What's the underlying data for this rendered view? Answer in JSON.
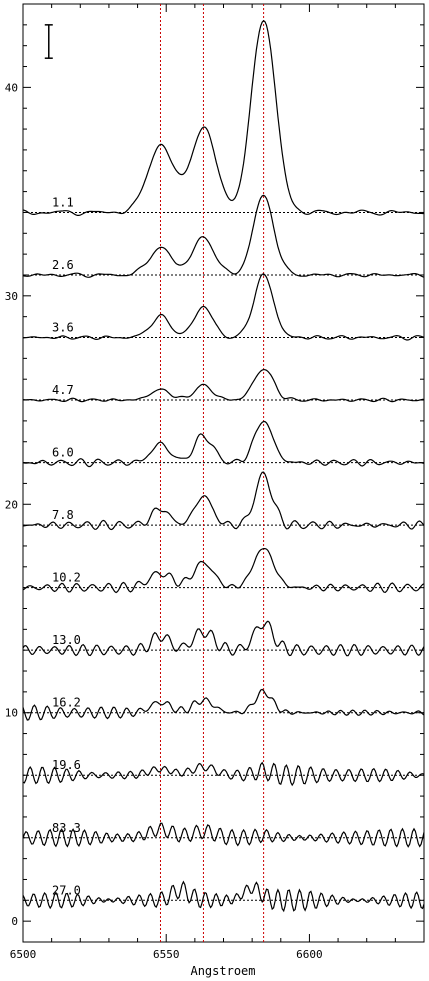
{
  "chart_data": {
    "type": "line",
    "title": "",
    "xlabel": "Angstroem",
    "ylabel": "",
    "xlim": [
      6500,
      6640
    ],
    "ylim": [
      -1,
      44
    ],
    "x_ticks": [
      6500,
      6550,
      6600
    ],
    "y_ticks": [
      0,
      10,
      20,
      30,
      40
    ],
    "grid": false,
    "legend": "none",
    "colors": {
      "spectrum": "#000000",
      "baseline": "#000000",
      "marker": "#cc0000"
    },
    "reference_lines_x": [
      6548,
      6563,
      6584
    ],
    "error_bar": {
      "x": 6509,
      "y_low": 41.4,
      "y_high": 43.0
    },
    "series": [
      {
        "name": "1.1",
        "offset": 34,
        "peaks": [
          [
            6548,
            3.2,
            4.5
          ],
          [
            6563,
            4.0,
            4.5
          ],
          [
            6584,
            9.3,
            4.2
          ]
        ],
        "noise": 0.15
      },
      {
        "name": "2.6",
        "offset": 31,
        "peaks": [
          [
            6548,
            1.3,
            4.0
          ],
          [
            6563,
            1.8,
            3.8
          ],
          [
            6584,
            3.8,
            3.6
          ]
        ],
        "noise": 0.12
      },
      {
        "name": "3.6",
        "offset": 28,
        "peaks": [
          [
            6548,
            1.0,
            3.5
          ],
          [
            6563,
            1.5,
            3.2
          ],
          [
            6584,
            3.0,
            3.4
          ]
        ],
        "noise": 0.12
      },
      {
        "name": "4.7",
        "offset": 25,
        "peaks": [
          [
            6548,
            0.5,
            3.5
          ],
          [
            6563,
            0.7,
            3.2
          ],
          [
            6584,
            1.5,
            3.4
          ]
        ],
        "noise": 0.1
      },
      {
        "name": "6.0",
        "offset": 22,
        "peaks": [
          [
            6548,
            0.9,
            3.2
          ],
          [
            6563,
            1.3,
            3.2
          ],
          [
            6584,
            2.0,
            3.2
          ]
        ],
        "noise": 0.2
      },
      {
        "name": "7.8",
        "offset": 19,
        "peaks": [
          [
            6548,
            0.8,
            3.0
          ],
          [
            6563,
            1.4,
            3.0
          ],
          [
            6584,
            2.4,
            3.0
          ]
        ],
        "noise": 0.25
      },
      {
        "name": "10.2",
        "offset": 16,
        "peaks": [
          [
            6548,
            0.7,
            4.0
          ],
          [
            6563,
            1.2,
            3.5
          ],
          [
            6584,
            1.9,
            3.5
          ]
        ],
        "noise": 0.3
      },
      {
        "name": "13.0",
        "offset": 13,
        "peaks": [
          [
            6548,
            0.7,
            3.0
          ],
          [
            6563,
            0.9,
            3.5
          ],
          [
            6584,
            1.3,
            3.2
          ]
        ],
        "noise": 0.3
      },
      {
        "name": "16.2",
        "offset": 10,
        "peaks": [
          [
            6548,
            0.5,
            3.5
          ],
          [
            6563,
            0.6,
            3.5
          ],
          [
            6584,
            1.0,
            3.0
          ]
        ],
        "noise": 0.4
      },
      {
        "name": "19.6",
        "offset": 7,
        "peaks": [
          [
            6548,
            0.3,
            4.0
          ],
          [
            6563,
            0.4,
            4.0
          ],
          [
            6584,
            0.2,
            3.0
          ]
        ],
        "noise": 0.5
      },
      {
        "name": "83.3",
        "offset": 4,
        "peaks": [
          [
            6548,
            0.4,
            4.0
          ],
          [
            6563,
            0.3,
            4.0
          ],
          [
            6584,
            0.1,
            3.0
          ]
        ],
        "noise": 0.55
      },
      {
        "name": "27.0",
        "offset": 1,
        "peaks": [
          [
            6555,
            0.5,
            3.0
          ],
          [
            6580,
            0.6,
            3.0
          ]
        ],
        "noise": 0.55
      }
    ]
  }
}
